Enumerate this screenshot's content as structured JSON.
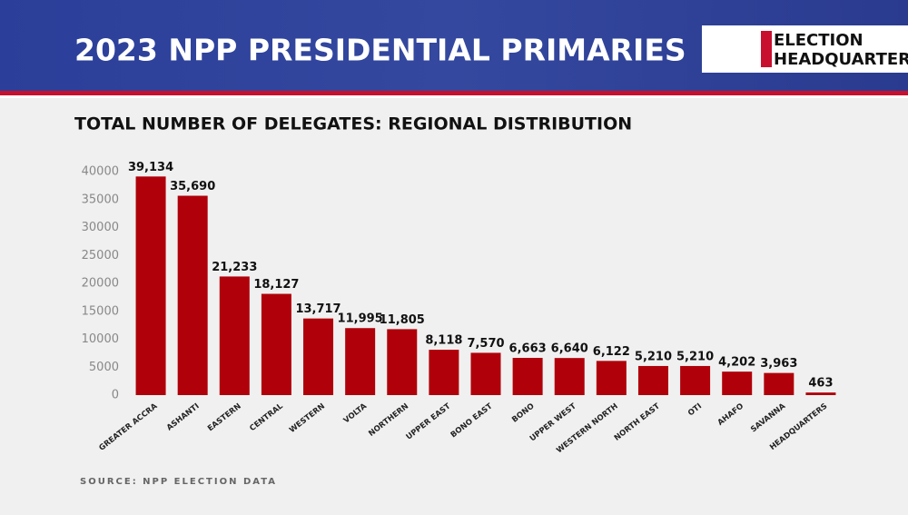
{
  "header": {
    "title": "2023 NPP PRESIDENTIAL PRIMARIES",
    "logo": [
      "ELECTION",
      "HEADQUARTERS"
    ]
  },
  "chart_data": {
    "type": "bar",
    "title": "TOTAL NUMBER OF DELEGATES: REGIONAL DISTRIBUTION",
    "categories": [
      "GREATER ACCRA",
      "ASHANTI",
      "EASTERN",
      "CENTRAL",
      "WESTERN",
      "VOLTA",
      "NORTHERN",
      "UPPER EAST",
      "BONO EAST",
      "BONO",
      "UPPER  WEST",
      "WESTERN NORTH",
      "NORTH EAST",
      "OTI",
      "AHAFO",
      "SAVANNA",
      "HEADQUARTERS"
    ],
    "values": [
      39134,
      35690,
      21233,
      18127,
      13717,
      11995,
      11805,
      8118,
      7570,
      6663,
      6640,
      6122,
      5210,
      5210,
      4202,
      3963,
      463
    ],
    "value_labels": [
      "39,134",
      "35,690",
      "21,233",
      "18,127",
      "13,717",
      "11,995",
      "11,805",
      "8,118",
      "7,570",
      "6,663",
      "6,640",
      "6,122",
      "5,210",
      "5,210",
      "4,202",
      "3,963",
      "463"
    ],
    "color": "#b0000a",
    "ylim": [
      0,
      40000
    ],
    "yticks": [
      0,
      5000,
      10000,
      15000,
      20000,
      25000,
      30000,
      35000,
      40000
    ],
    "grid": false,
    "source": "SOURCE: NPP ELECTION DATA"
  }
}
